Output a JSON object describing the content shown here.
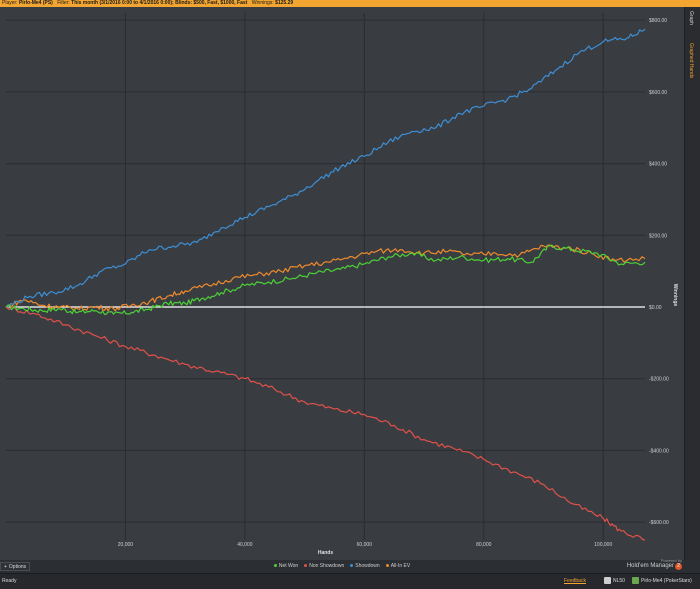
{
  "titlebar": {
    "player_key": "Player:",
    "player_val": "Pirlo-Me4 (PS)",
    "filter_key": "Filter:",
    "filter_val": "This month (3/1/2016 0:00 to 4/1/2016 0:00); Blinds: $500, Fast, $1000, Fast",
    "winnings_key": "Winnings:",
    "winnings_val": "$125.29"
  },
  "right_panel": {
    "graph_tab": "Graph",
    "hands_tab": "Graphed Hands"
  },
  "chart_data": {
    "type": "line",
    "xlabel": "Hands",
    "ylabel": "Winnings",
    "xlim": [
      0,
      107000
    ],
    "ylim": [
      -650,
      820
    ],
    "x_ticks": [
      20000,
      40000,
      60000,
      80000,
      100000
    ],
    "x_tick_labels": [
      "20,000",
      "40,000",
      "60,000",
      "80,000",
      "100,000"
    ],
    "y_ticks": [
      800,
      600,
      400,
      200,
      0,
      -200,
      -400,
      -600
    ],
    "y_tick_labels": [
      "$800.00",
      "$600.00",
      "$400.00",
      "$200.00",
      "$0.00",
      "-$200.00",
      "-$400.00",
      "-$600.00"
    ],
    "grid": true,
    "legend_position": "bottom",
    "series": [
      {
        "name": "Net Won",
        "color": "#4cd137",
        "points": [
          [
            0,
            0
          ],
          [
            3000,
            -5
          ],
          [
            6000,
            -10
          ],
          [
            9000,
            -5
          ],
          [
            12000,
            -15
          ],
          [
            15000,
            -10
          ],
          [
            18000,
            -20
          ],
          [
            21000,
            -15
          ],
          [
            24000,
            -5
          ],
          [
            27000,
            10
          ],
          [
            30000,
            10
          ],
          [
            33000,
            25
          ],
          [
            36000,
            40
          ],
          [
            40000,
            60
          ],
          [
            44000,
            70
          ],
          [
            48000,
            80
          ],
          [
            52000,
            95
          ],
          [
            56000,
            105
          ],
          [
            60000,
            120
          ],
          [
            64000,
            140
          ],
          [
            68000,
            150
          ],
          [
            72000,
            130
          ],
          [
            76000,
            140
          ],
          [
            80000,
            130
          ],
          [
            84000,
            135
          ],
          [
            88000,
            125
          ],
          [
            91000,
            170
          ],
          [
            95000,
            160
          ],
          [
            99000,
            150
          ],
          [
            103000,
            120
          ],
          [
            107000,
            125
          ]
        ]
      },
      {
        "name": "Non Showdown",
        "color": "#e0514a",
        "points": [
          [
            0,
            0
          ],
          [
            5000,
            -20
          ],
          [
            10000,
            -50
          ],
          [
            15000,
            -80
          ],
          [
            20000,
            -110
          ],
          [
            25000,
            -135
          ],
          [
            30000,
            -160
          ],
          [
            35000,
            -180
          ],
          [
            40000,
            -200
          ],
          [
            45000,
            -230
          ],
          [
            50000,
            -265
          ],
          [
            55000,
            -285
          ],
          [
            60000,
            -300
          ],
          [
            65000,
            -330
          ],
          [
            70000,
            -370
          ],
          [
            75000,
            -395
          ],
          [
            80000,
            -425
          ],
          [
            85000,
            -460
          ],
          [
            90000,
            -495
          ],
          [
            95000,
            -550
          ],
          [
            100000,
            -590
          ],
          [
            103000,
            -625
          ],
          [
            107000,
            -650
          ]
        ]
      },
      {
        "name": "Showdown",
        "color": "#3d8fd6",
        "points": [
          [
            0,
            0
          ],
          [
            4000,
            30
          ],
          [
            8000,
            40
          ],
          [
            12000,
            60
          ],
          [
            16000,
            100
          ],
          [
            20000,
            120
          ],
          [
            24000,
            160
          ],
          [
            28000,
            170
          ],
          [
            32000,
            180
          ],
          [
            36000,
            220
          ],
          [
            40000,
            250
          ],
          [
            44000,
            280
          ],
          [
            48000,
            310
          ],
          [
            52000,
            350
          ],
          [
            56000,
            390
          ],
          [
            60000,
            420
          ],
          [
            64000,
            460
          ],
          [
            68000,
            490
          ],
          [
            72000,
            500
          ],
          [
            76000,
            540
          ],
          [
            80000,
            560
          ],
          [
            84000,
            580
          ],
          [
            88000,
            610
          ],
          [
            92000,
            660
          ],
          [
            96000,
            710
          ],
          [
            100000,
            740
          ],
          [
            104000,
            750
          ],
          [
            107000,
            775
          ]
        ]
      },
      {
        "name": "All-In EV",
        "color": "#f08a2c",
        "points": [
          [
            0,
            0
          ],
          [
            3000,
            20
          ],
          [
            6000,
            5
          ],
          [
            9000,
            0
          ],
          [
            12000,
            -5
          ],
          [
            15000,
            0
          ],
          [
            18000,
            -5
          ],
          [
            21000,
            5
          ],
          [
            24000,
            15
          ],
          [
            27000,
            30
          ],
          [
            30000,
            45
          ],
          [
            34000,
            60
          ],
          [
            38000,
            80
          ],
          [
            42000,
            90
          ],
          [
            46000,
            100
          ],
          [
            50000,
            115
          ],
          [
            54000,
            125
          ],
          [
            58000,
            140
          ],
          [
            62000,
            155
          ],
          [
            66000,
            160
          ],
          [
            70000,
            150
          ],
          [
            74000,
            155
          ],
          [
            78000,
            145
          ],
          [
            82000,
            150
          ],
          [
            86000,
            145
          ],
          [
            90000,
            170
          ],
          [
            94000,
            165
          ],
          [
            98000,
            150
          ],
          [
            102000,
            130
          ],
          [
            107000,
            135
          ]
        ]
      }
    ]
  },
  "options": {
    "plus": "+",
    "label": "Options"
  },
  "powered": {
    "line1": "Powered by",
    "brand": "Hold'em Manager",
    "badge": "2"
  },
  "statusbar": {
    "ready": "Ready",
    "feedback": "Feedback",
    "stake": "NL50",
    "player": "Pirlo-Me4 (PokerStars)"
  }
}
